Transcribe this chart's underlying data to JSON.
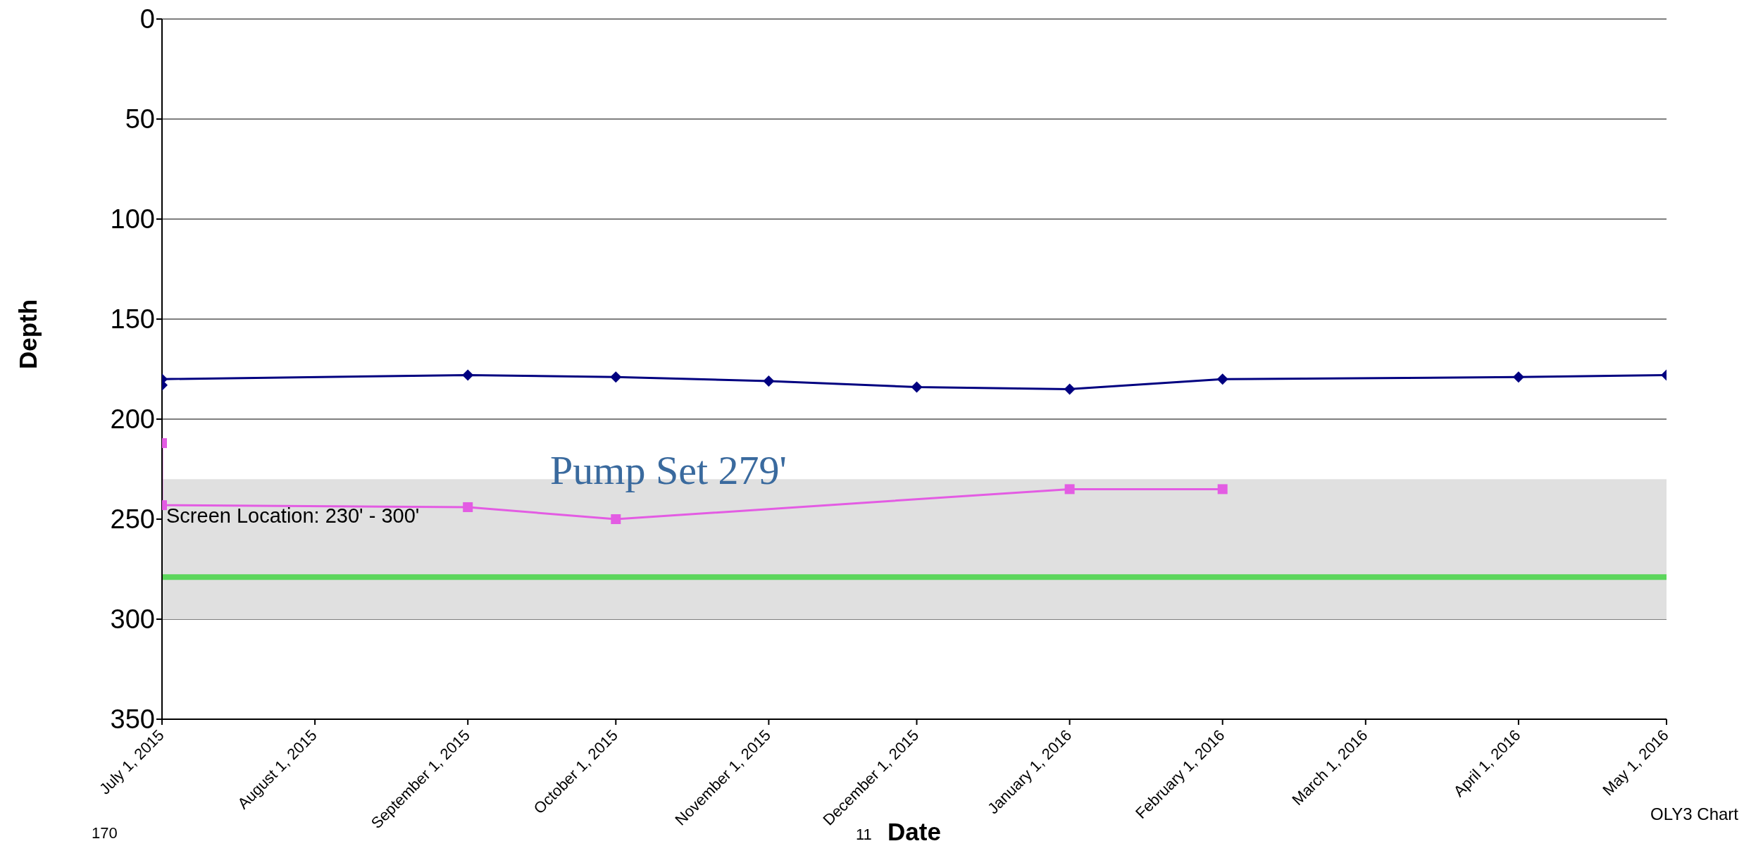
{
  "chart_data": {
    "type": "line",
    "xlabel": "Date",
    "ylabel": "Depth",
    "x": [
      "2015-07-01",
      "2015-07-01",
      "2015-09-01",
      "2015-10-01",
      "2015-11-01",
      "2015-12-01",
      "2016-01-01",
      "2016-02-01",
      "2016-04-01",
      "2016-05-01"
    ],
    "series": [
      {
        "color": "#000080",
        "marker": "diamond",
        "values": [
          183,
          180,
          178,
          179,
          181,
          184,
          185,
          180,
          179,
          178
        ]
      },
      {
        "color": "#e35ce3",
        "marker": "square",
        "x": [
          "2015-07-01",
          "2015-07-01",
          "2015-09-01",
          "2015-10-01",
          "2016-01-01",
          "2016-02-01"
        ],
        "values": [
          212,
          243,
          244,
          250,
          235,
          235
        ]
      }
    ],
    "ylim": [
      350,
      0
    ],
    "yticks": [
      0,
      50,
      100,
      150,
      200,
      250,
      300,
      350
    ],
    "xlim": [
      "2015-07-01",
      "2016-05-01"
    ],
    "xticks": [
      {
        "value": "2015-07-01",
        "label": "July 1, 2015"
      },
      {
        "value": "2015-08-01",
        "label": "August 1, 2015"
      },
      {
        "value": "2015-09-01",
        "label": "September 1, 2015"
      },
      {
        "value": "2015-10-01",
        "label": "October 1, 2015"
      },
      {
        "value": "2015-11-01",
        "label": "November 1, 2015"
      },
      {
        "value": "2015-12-01",
        "label": "December 1, 2015"
      },
      {
        "value": "2016-01-01",
        "label": "January 1, 2016"
      },
      {
        "value": "2016-02-01",
        "label": "February 1, 2016"
      },
      {
        "value": "2016-03-01",
        "label": "March 1, 2016"
      },
      {
        "value": "2016-04-01",
        "label": "April 1, 2016"
      },
      {
        "value": "2016-05-01",
        "label": "May 1, 2016"
      }
    ],
    "grid": "y",
    "legend": false,
    "ref_lines": [
      {
        "axis": "y",
        "value": 279,
        "label": "Pump Set 279'",
        "color": "#5cd65c"
      }
    ],
    "bands": [
      {
        "axis": "y",
        "from": 230,
        "to": 300,
        "label": "Screen Location: 230' - 300'",
        "color": "#e0e0e0"
      }
    ],
    "annotations": [
      "170",
      "11",
      "OLY3 Chart"
    ]
  }
}
